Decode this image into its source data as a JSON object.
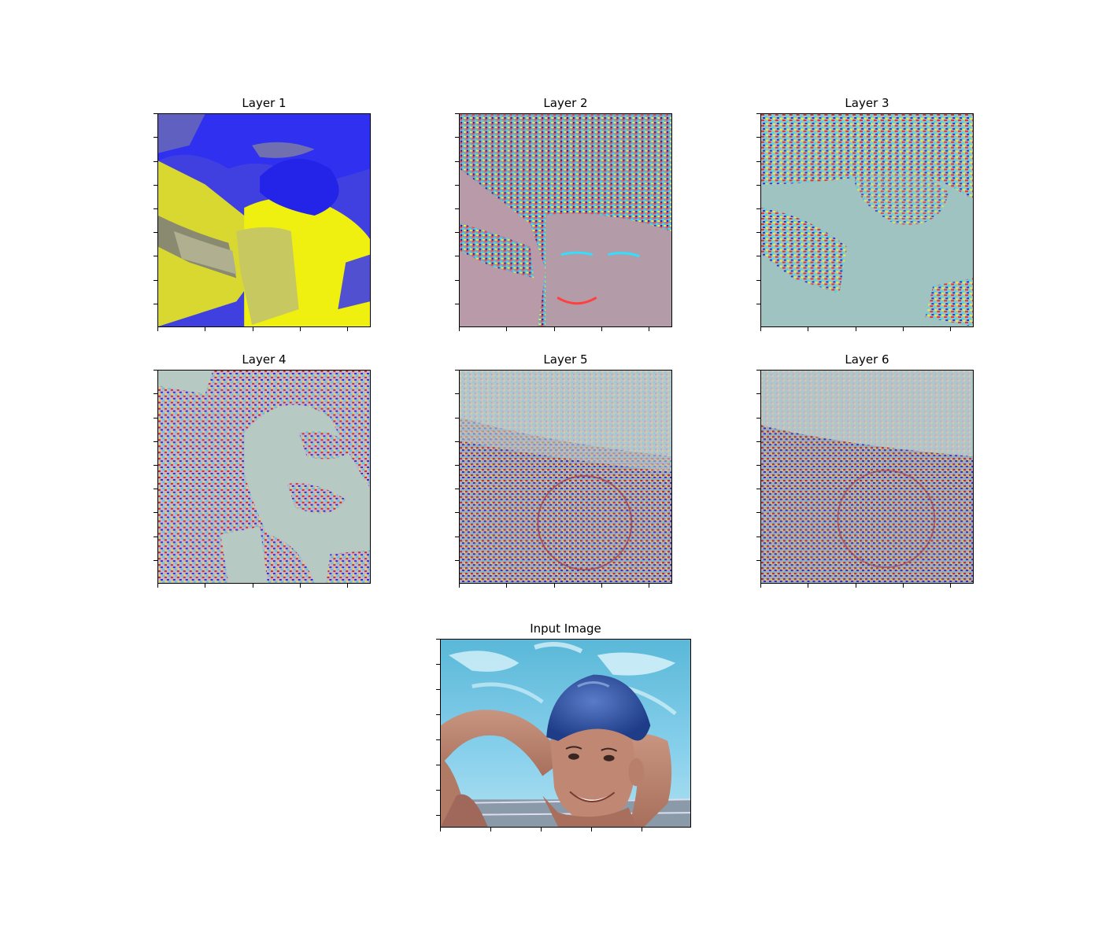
{
  "figure": {
    "panels": [
      {
        "id": "layer-1",
        "title": "Layer 1",
        "palette": "yellow-blue"
      },
      {
        "id": "layer-2",
        "title": "Layer 2",
        "palette": "rainbow-edges"
      },
      {
        "id": "layer-3",
        "title": "Layer 3",
        "palette": "rainbow-edges-sparse"
      },
      {
        "id": "layer-4",
        "title": "Layer 4",
        "palette": "rainbow-sparse"
      },
      {
        "id": "layer-5",
        "title": "Layer 5",
        "palette": "rainbow-dense"
      },
      {
        "id": "layer-6",
        "title": "Layer 6",
        "palette": "rainbow-dense"
      },
      {
        "id": "input-image",
        "title": "Input Image",
        "palette": "photo"
      }
    ]
  },
  "colors": {
    "yellow": "#f5f500",
    "blue": "#2a2af0",
    "gray_teal": "#9fc3c0",
    "mauve": "#b89aa8",
    "pool_blue": "#4fb6d8",
    "cap_blue": "#2f52a8",
    "skin": "#c08873"
  }
}
